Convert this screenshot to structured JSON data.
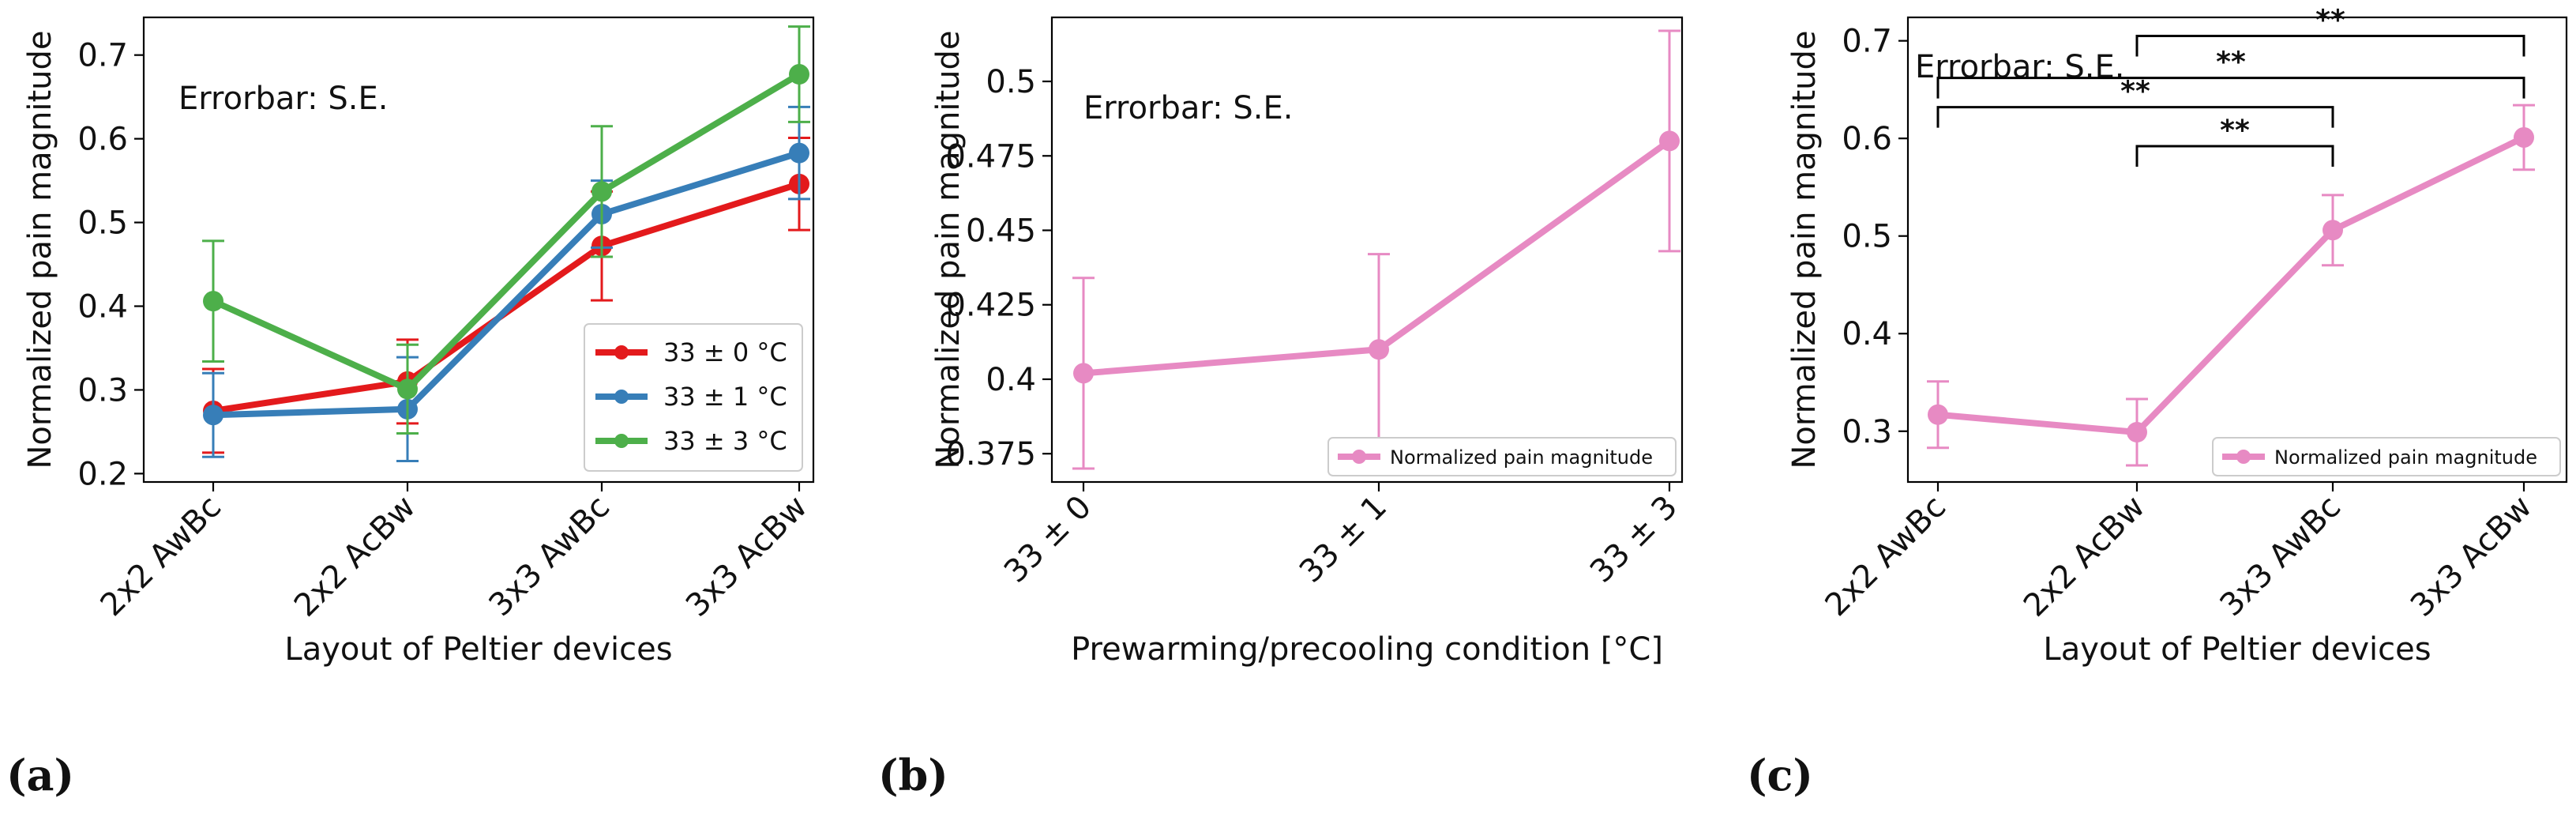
{
  "chart_data": [
    {
      "panel": "(a)",
      "type": "line",
      "xlabel": "Layout of Peltier devices",
      "ylabel": "Normalized pain magnitude",
      "categories": [
        "2x2 AwBc",
        "2x2 AcBw",
        "3x3 AwBc",
        "3x3 AcBw"
      ],
      "ylim": [
        0.19,
        0.745
      ],
      "yticks": [
        0.2,
        0.3,
        0.4,
        0.5,
        0.6,
        0.7
      ],
      "annotation": "Errorbar: S.E.",
      "legend_position": "lower-right",
      "series": [
        {
          "name": "33 ± 0 °C",
          "color": "#e31a1c",
          "values": [
            0.275,
            0.31,
            0.472,
            0.546
          ],
          "errors": [
            0.05,
            0.05,
            0.065,
            0.055
          ]
        },
        {
          "name": "33 ± 1 °C",
          "color": "#377eb8",
          "values": [
            0.27,
            0.277,
            0.51,
            0.583
          ],
          "errors": [
            0.05,
            0.062,
            0.04,
            0.055
          ]
        },
        {
          "name": "33 ± 3 °C",
          "color": "#4daf4a",
          "values": [
            0.406,
            0.301,
            0.537,
            0.677
          ],
          "errors": [
            0.072,
            0.053,
            0.078,
            0.057
          ]
        }
      ]
    },
    {
      "panel": "(b)",
      "type": "line",
      "xlabel": "Prewarming/precooling condition [°C]",
      "ylabel": "Normalized pain magnitude",
      "categories": [
        "33 ± 0",
        "33 ± 1",
        "33 ± 3"
      ],
      "ylim": [
        0.3655,
        0.5215
      ],
      "yticks": [
        0.375,
        0.4,
        0.425,
        0.45,
        0.475,
        0.5
      ],
      "annotation": "Errorbar: S.E.",
      "legend_position": "lower-right",
      "series": [
        {
          "name": "Normalized pain magnitude",
          "color": "#e78ac3",
          "values": [
            0.402,
            0.41,
            0.48
          ],
          "errors": [
            0.032,
            0.032,
            0.037
          ]
        }
      ]
    },
    {
      "panel": "(c)",
      "type": "line",
      "xlabel": "Layout of Peltier devices",
      "ylabel": "Normalized pain magnitude",
      "categories": [
        "2x2 AwBc",
        "2x2 AcBw",
        "3x3 AwBc",
        "3x3 AcBw"
      ],
      "ylim": [
        0.248,
        0.724
      ],
      "yticks": [
        0.3,
        0.4,
        0.5,
        0.6,
        0.7
      ],
      "annotation": "Errorbar: S.E.",
      "legend_position": "lower-right",
      "series": [
        {
          "name": "Normalized pain magnitude",
          "color": "#e78ac3",
          "values": [
            0.317,
            0.299,
            0.506,
            0.601
          ],
          "errors": [
            0.034,
            0.034,
            0.036,
            0.033
          ]
        }
      ],
      "significance": [
        {
          "from": 0,
          "to": 2,
          "y": 0.632,
          "label": "**"
        },
        {
          "from": 1,
          "to": 2,
          "y": 0.592,
          "label": "**"
        },
        {
          "from": 0,
          "to": 3,
          "y": 0.662,
          "label": "**"
        },
        {
          "from": 1,
          "to": 3,
          "y": 0.705,
          "label": "**"
        }
      ]
    }
  ]
}
